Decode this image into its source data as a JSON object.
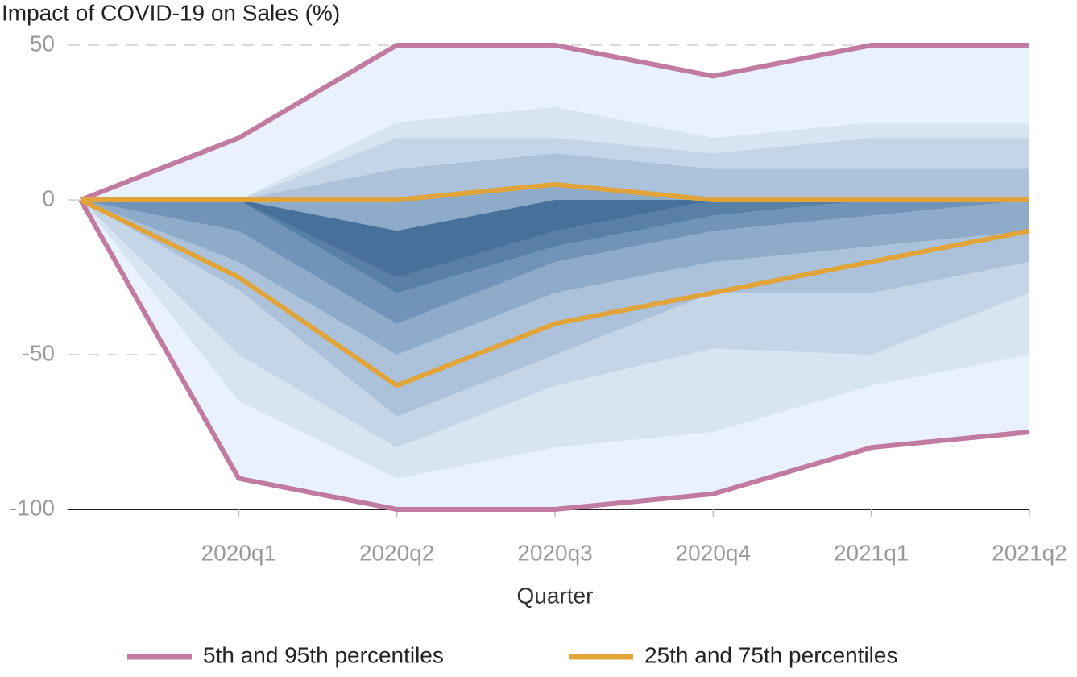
{
  "chart_data": {
    "type": "fan",
    "title": "Impact of COVID-19 on Sales (%)",
    "x_label": "Quarter",
    "categories": [
      null,
      "2020q1",
      "2020q2",
      "2020q3",
      "2020q4",
      "2021q1",
      "2021q2"
    ],
    "ylim": [
      -100,
      50
    ],
    "yticks": [
      50,
      0,
      -50,
      -100
    ],
    "grid": true,
    "legend": "bottom",
    "band_fill": "#e8f1fc",
    "bands": [
      {
        "color": "#d7e4f1",
        "lower": [
          0,
          -65,
          -90,
          -80,
          -75,
          -60,
          -50
        ],
        "upper": [
          0,
          0,
          25,
          30,
          20,
          25,
          25
        ]
      },
      {
        "color": "#c4d5e7",
        "lower": [
          0,
          -50,
          -80,
          -60,
          -48,
          -50,
          -30
        ],
        "upper": [
          0,
          0,
          20,
          20,
          15,
          20,
          20
        ]
      },
      {
        "color": "#abc2da",
        "lower": [
          0,
          -29,
          -70,
          -50,
          -30,
          -30,
          -20
        ],
        "upper": [
          0,
          0,
          10,
          15,
          10,
          10,
          10
        ]
      },
      {
        "color": "#8eabca",
        "lower": [
          0,
          -20,
          -50,
          -30,
          -20,
          -15,
          -10
        ],
        "upper": [
          0,
          0,
          0,
          5,
          0,
          0,
          0
        ]
      },
      {
        "color": "#7193b7",
        "lower": [
          0,
          -10,
          -40,
          -20,
          -10,
          -5,
          0
        ],
        "upper": [
          0,
          0,
          -10,
          0,
          0,
          0,
          0
        ]
      },
      {
        "color": "#587fa6",
        "lower": [
          0,
          0,
          -30,
          -15,
          -5,
          0,
          0
        ],
        "upper": [
          0,
          0,
          -10,
          -5,
          0,
          0,
          0
        ]
      },
      {
        "color": "#47719a",
        "lower": [
          0,
          0,
          -25,
          -10,
          0,
          0,
          0
        ],
        "upper": [
          0,
          0,
          -10,
          0,
          0,
          0,
          0
        ]
      }
    ],
    "series": [
      {
        "name": "5th and 95th percentiles",
        "color": "#c27ba0",
        "lower": [
          0,
          -90,
          -100,
          -100,
          -95,
          -80,
          -75
        ],
        "upper": [
          0,
          20,
          50,
          50,
          40,
          50,
          50
        ]
      },
      {
        "name": "25th and 75th percentiles",
        "color": "#e0a43a",
        "lower": [
          0,
          -25,
          -60,
          -40,
          -30,
          -20,
          -10
        ],
        "upper": [
          0,
          0,
          0,
          5,
          0,
          0,
          0
        ]
      }
    ]
  }
}
